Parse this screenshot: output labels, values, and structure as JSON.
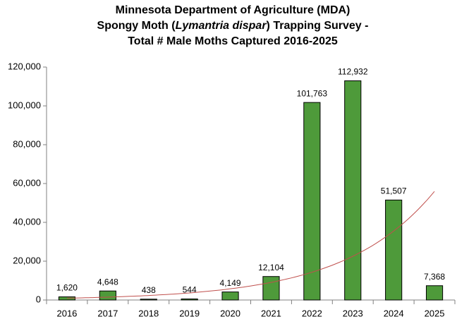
{
  "chart_data": {
    "type": "bar",
    "title": [
      [
        {
          "text": "Minnesota Department of Agriculture (MDA)"
        }
      ],
      [
        {
          "text": "Spongy Moth ("
        },
        {
          "text": "Lymantria dispar",
          "italic": true
        },
        {
          "text": ") Trapping Survey -"
        }
      ],
      [
        {
          "text": "Total # Male Moths Captured 2016-2025"
        }
      ]
    ],
    "categories": [
      "2016",
      "2017",
      "2018",
      "2019",
      "2020",
      "2021",
      "2022",
      "2023",
      "2024",
      "2025"
    ],
    "values": [
      1620,
      4648,
      438,
      544,
      4149,
      12104,
      101763,
      112932,
      51507,
      7368
    ],
    "value_labels": [
      "1,620",
      "4,648",
      "438",
      "544",
      "4,149",
      "12,104",
      "101,763",
      "112,932",
      "51,507",
      "7,368"
    ],
    "color": "#4e9a3a",
    "ylim": [
      0,
      120000
    ],
    "yticks": [
      0,
      {
        "value": 20000,
        "label": "20,000"
      },
      {
        "value": 40000,
        "label": "40,000"
      },
      {
        "value": 60000,
        "label": "60,000"
      },
      {
        "value": 80000,
        "label": "80,000"
      },
      {
        "value": 100000,
        "label": "100,000"
      },
      {
        "value": 120000,
        "label": "120,000"
      }
    ],
    "grid": false,
    "trendline": {
      "type": "exponential",
      "color": "#c0504d"
    }
  }
}
